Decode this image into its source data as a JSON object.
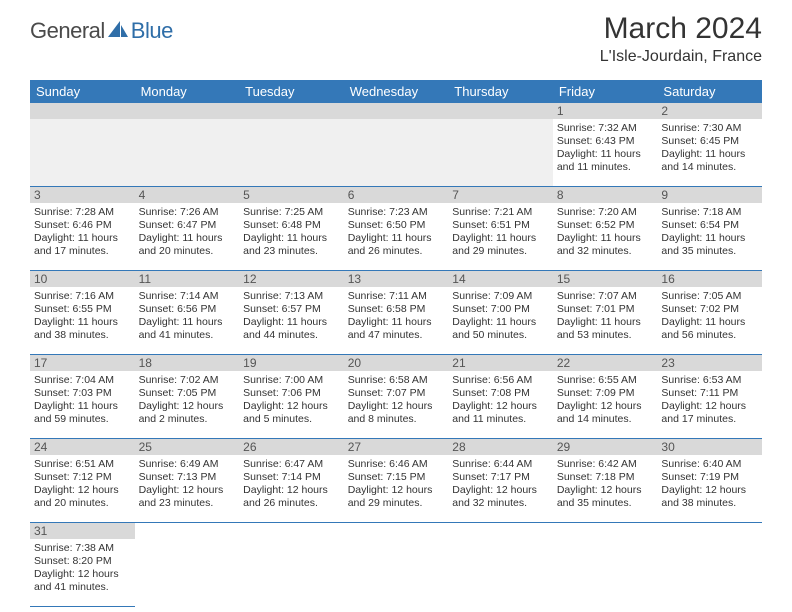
{
  "logo": {
    "text1": "General",
    "text2": "Blue"
  },
  "title": "March 2024",
  "location": "L'Isle-Jourdain, France",
  "colors": {
    "header_bg": "#3478b8",
    "header_text": "#ffffff",
    "numrow_bg": "#d9d9d9",
    "cell_border": "#3478b8",
    "logo_blue": "#2f6ea8",
    "text": "#333333"
  },
  "day_headers": [
    "Sunday",
    "Monday",
    "Tuesday",
    "Wednesday",
    "Thursday",
    "Friday",
    "Saturday"
  ],
  "weeks": [
    [
      null,
      null,
      null,
      null,
      null,
      {
        "n": "1",
        "sunrise": "Sunrise: 7:32 AM",
        "sunset": "Sunset: 6:43 PM",
        "dl1": "Daylight: 11 hours",
        "dl2": "and 11 minutes."
      },
      {
        "n": "2",
        "sunrise": "Sunrise: 7:30 AM",
        "sunset": "Sunset: 6:45 PM",
        "dl1": "Daylight: 11 hours",
        "dl2": "and 14 minutes."
      }
    ],
    [
      {
        "n": "3",
        "sunrise": "Sunrise: 7:28 AM",
        "sunset": "Sunset: 6:46 PM",
        "dl1": "Daylight: 11 hours",
        "dl2": "and 17 minutes."
      },
      {
        "n": "4",
        "sunrise": "Sunrise: 7:26 AM",
        "sunset": "Sunset: 6:47 PM",
        "dl1": "Daylight: 11 hours",
        "dl2": "and 20 minutes."
      },
      {
        "n": "5",
        "sunrise": "Sunrise: 7:25 AM",
        "sunset": "Sunset: 6:48 PM",
        "dl1": "Daylight: 11 hours",
        "dl2": "and 23 minutes."
      },
      {
        "n": "6",
        "sunrise": "Sunrise: 7:23 AM",
        "sunset": "Sunset: 6:50 PM",
        "dl1": "Daylight: 11 hours",
        "dl2": "and 26 minutes."
      },
      {
        "n": "7",
        "sunrise": "Sunrise: 7:21 AM",
        "sunset": "Sunset: 6:51 PM",
        "dl1": "Daylight: 11 hours",
        "dl2": "and 29 minutes."
      },
      {
        "n": "8",
        "sunrise": "Sunrise: 7:20 AM",
        "sunset": "Sunset: 6:52 PM",
        "dl1": "Daylight: 11 hours",
        "dl2": "and 32 minutes."
      },
      {
        "n": "9",
        "sunrise": "Sunrise: 7:18 AM",
        "sunset": "Sunset: 6:54 PM",
        "dl1": "Daylight: 11 hours",
        "dl2": "and 35 minutes."
      }
    ],
    [
      {
        "n": "10",
        "sunrise": "Sunrise: 7:16 AM",
        "sunset": "Sunset: 6:55 PM",
        "dl1": "Daylight: 11 hours",
        "dl2": "and 38 minutes."
      },
      {
        "n": "11",
        "sunrise": "Sunrise: 7:14 AM",
        "sunset": "Sunset: 6:56 PM",
        "dl1": "Daylight: 11 hours",
        "dl2": "and 41 minutes."
      },
      {
        "n": "12",
        "sunrise": "Sunrise: 7:13 AM",
        "sunset": "Sunset: 6:57 PM",
        "dl1": "Daylight: 11 hours",
        "dl2": "and 44 minutes."
      },
      {
        "n": "13",
        "sunrise": "Sunrise: 7:11 AM",
        "sunset": "Sunset: 6:58 PM",
        "dl1": "Daylight: 11 hours",
        "dl2": "and 47 minutes."
      },
      {
        "n": "14",
        "sunrise": "Sunrise: 7:09 AM",
        "sunset": "Sunset: 7:00 PM",
        "dl1": "Daylight: 11 hours",
        "dl2": "and 50 minutes."
      },
      {
        "n": "15",
        "sunrise": "Sunrise: 7:07 AM",
        "sunset": "Sunset: 7:01 PM",
        "dl1": "Daylight: 11 hours",
        "dl2": "and 53 minutes."
      },
      {
        "n": "16",
        "sunrise": "Sunrise: 7:05 AM",
        "sunset": "Sunset: 7:02 PM",
        "dl1": "Daylight: 11 hours",
        "dl2": "and 56 minutes."
      }
    ],
    [
      {
        "n": "17",
        "sunrise": "Sunrise: 7:04 AM",
        "sunset": "Sunset: 7:03 PM",
        "dl1": "Daylight: 11 hours",
        "dl2": "and 59 minutes."
      },
      {
        "n": "18",
        "sunrise": "Sunrise: 7:02 AM",
        "sunset": "Sunset: 7:05 PM",
        "dl1": "Daylight: 12 hours",
        "dl2": "and 2 minutes."
      },
      {
        "n": "19",
        "sunrise": "Sunrise: 7:00 AM",
        "sunset": "Sunset: 7:06 PM",
        "dl1": "Daylight: 12 hours",
        "dl2": "and 5 minutes."
      },
      {
        "n": "20",
        "sunrise": "Sunrise: 6:58 AM",
        "sunset": "Sunset: 7:07 PM",
        "dl1": "Daylight: 12 hours",
        "dl2": "and 8 minutes."
      },
      {
        "n": "21",
        "sunrise": "Sunrise: 6:56 AM",
        "sunset": "Sunset: 7:08 PM",
        "dl1": "Daylight: 12 hours",
        "dl2": "and 11 minutes."
      },
      {
        "n": "22",
        "sunrise": "Sunrise: 6:55 AM",
        "sunset": "Sunset: 7:09 PM",
        "dl1": "Daylight: 12 hours",
        "dl2": "and 14 minutes."
      },
      {
        "n": "23",
        "sunrise": "Sunrise: 6:53 AM",
        "sunset": "Sunset: 7:11 PM",
        "dl1": "Daylight: 12 hours",
        "dl2": "and 17 minutes."
      }
    ],
    [
      {
        "n": "24",
        "sunrise": "Sunrise: 6:51 AM",
        "sunset": "Sunset: 7:12 PM",
        "dl1": "Daylight: 12 hours",
        "dl2": "and 20 minutes."
      },
      {
        "n": "25",
        "sunrise": "Sunrise: 6:49 AM",
        "sunset": "Sunset: 7:13 PM",
        "dl1": "Daylight: 12 hours",
        "dl2": "and 23 minutes."
      },
      {
        "n": "26",
        "sunrise": "Sunrise: 6:47 AM",
        "sunset": "Sunset: 7:14 PM",
        "dl1": "Daylight: 12 hours",
        "dl2": "and 26 minutes."
      },
      {
        "n": "27",
        "sunrise": "Sunrise: 6:46 AM",
        "sunset": "Sunset: 7:15 PM",
        "dl1": "Daylight: 12 hours",
        "dl2": "and 29 minutes."
      },
      {
        "n": "28",
        "sunrise": "Sunrise: 6:44 AM",
        "sunset": "Sunset: 7:17 PM",
        "dl1": "Daylight: 12 hours",
        "dl2": "and 32 minutes."
      },
      {
        "n": "29",
        "sunrise": "Sunrise: 6:42 AM",
        "sunset": "Sunset: 7:18 PM",
        "dl1": "Daylight: 12 hours",
        "dl2": "and 35 minutes."
      },
      {
        "n": "30",
        "sunrise": "Sunrise: 6:40 AM",
        "sunset": "Sunset: 7:19 PM",
        "dl1": "Daylight: 12 hours",
        "dl2": "and 38 minutes."
      }
    ],
    [
      {
        "n": "31",
        "sunrise": "Sunrise: 7:38 AM",
        "sunset": "Sunset: 8:20 PM",
        "dl1": "Daylight: 12 hours",
        "dl2": "and 41 minutes."
      },
      null,
      null,
      null,
      null,
      null,
      null
    ]
  ]
}
